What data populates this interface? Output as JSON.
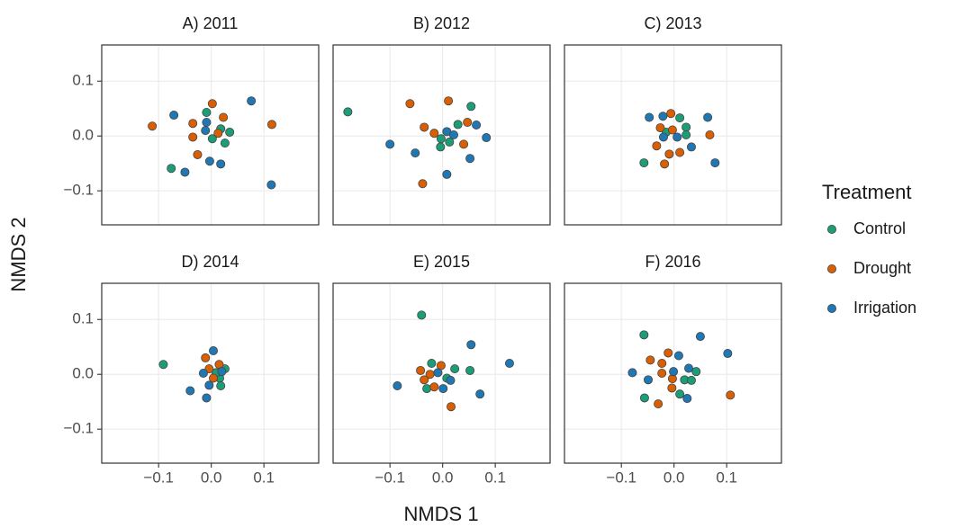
{
  "chart_data": {
    "type": "scatter",
    "x_label": "NMDS 1",
    "y_label": "NMDS 2",
    "xlim": [
      -0.208,
      0.204
    ],
    "ylim": [
      -0.162,
      0.166
    ],
    "xticks": [
      {
        "value": -0.1,
        "label": "−0.1"
      },
      {
        "value": 0,
        "label": "0.0"
      },
      0.1
    ],
    "yticks": [
      {
        "value": -0.1,
        "label": "−0.1"
      },
      {
        "value": 0,
        "label": "0.0"
      },
      0.1
    ],
    "grid": true,
    "legend": {
      "title": "Treatment",
      "position": "right"
    },
    "series": [
      {
        "name": "Control",
        "color": "#1b9e77"
      },
      {
        "name": "Drought",
        "color": "#d95f02"
      },
      {
        "name": "Irrigation",
        "color": "#1f78b4"
      }
    ],
    "panels": [
      {
        "title": "A) 2011",
        "series": [
          {
            "x": [
              -0.009,
              0.002,
              0.018,
              0.026,
              0.035,
              -0.076
            ],
            "y": [
              0.043,
              -0.005,
              0.013,
              -0.013,
              0.007,
              -0.059
            ]
          },
          {
            "x": [
              -0.112,
              -0.035,
              -0.035,
              0.002,
              0.023,
              -0.026,
              0.115,
              0.013
            ],
            "y": [
              0.018,
              0.023,
              -0.002,
              0.059,
              0.034,
              -0.034,
              0.021,
              0.005
            ]
          },
          {
            "x": [
              -0.071,
              -0.009,
              -0.011,
              0.076,
              -0.05,
              -0.003,
              0.018,
              0.114
            ],
            "y": [
              0.038,
              0.025,
              0.01,
              0.064,
              -0.066,
              -0.046,
              -0.051,
              -0.089
            ]
          }
        ]
      },
      {
        "title": "B) 2012",
        "series": [
          {
            "x": [
              -0.18,
              -0.003,
              0.013,
              0.029,
              0.054,
              -0.004
            ],
            "y": [
              0.044,
              -0.005,
              -0.011,
              0.021,
              0.054,
              -0.02
            ]
          },
          {
            "x": [
              -0.062,
              -0.035,
              -0.016,
              0.011,
              0.047,
              0.04,
              -0.038
            ],
            "y": [
              0.059,
              0.016,
              0.005,
              0.064,
              0.025,
              -0.015,
              -0.087
            ]
          },
          {
            "x": [
              -0.1,
              -0.052,
              0.008,
              0.021,
              0.064,
              0.083,
              0.052,
              0.008
            ],
            "y": [
              -0.015,
              -0.031,
              0.008,
              0.002,
              0.02,
              -0.003,
              -0.041,
              -0.07
            ]
          }
        ]
      },
      {
        "title": "C) 2013",
        "series": [
          {
            "x": [
              -0.057,
              -0.015,
              0.011,
              0.023,
              0.023
            ],
            "y": [
              -0.049,
              0.007,
              0.033,
              0.016,
              0.002
            ]
          },
          {
            "x": [
              -0.026,
              -0.006,
              -0.033,
              -0.018,
              -0.009,
              0.011,
              0.068,
              -0.003
            ],
            "y": [
              0.015,
              0.041,
              -0.018,
              -0.051,
              -0.033,
              -0.03,
              0.002,
              0.011
            ]
          },
          {
            "x": [
              -0.047,
              -0.021,
              -0.02,
              0.006,
              0.033,
              0.064,
              0.078
            ],
            "y": [
              0.034,
              0.036,
              -0.002,
              -0.002,
              -0.02,
              0.034,
              -0.049
            ]
          }
        ]
      },
      {
        "title": "D) 2014",
        "series": [
          {
            "x": [
              -0.091,
              0.016,
              0.026,
              0.018,
              0.009
            ],
            "y": [
              0.018,
              -0.007,
              0.01,
              -0.021,
              0.003
            ]
          },
          {
            "x": [
              -0.011,
              -0.004,
              0.015,
              0.004
            ],
            "y": [
              0.03,
              0.01,
              0.018,
              -0.007
            ]
          },
          {
            "x": [
              0.004,
              -0.015,
              -0.004,
              -0.009,
              -0.04,
              0.02
            ],
            "y": [
              0.043,
              0.002,
              -0.02,
              -0.043,
              -0.03,
              0.005
            ]
          }
        ]
      },
      {
        "title": "E) 2015",
        "series": [
          {
            "x": [
              -0.04,
              0.023,
              0.052,
              -0.03,
              -0.021,
              0.008
            ],
            "y": [
              0.108,
              0.01,
              0.007,
              -0.026,
              0.02,
              -0.007
            ]
          },
          {
            "x": [
              -0.042,
              -0.024,
              -0.016,
              -0.003,
              0.016,
              -0.035
            ],
            "y": [
              0.007,
              0.0,
              -0.023,
              0.016,
              -0.059,
              -0.01
            ]
          },
          {
            "x": [
              -0.086,
              -0.009,
              0.015,
              0.054,
              0.071,
              0.127,
              0.001
            ],
            "y": [
              -0.021,
              0.003,
              -0.011,
              0.054,
              -0.036,
              0.02,
              -0.026
            ]
          }
        ]
      },
      {
        "title": "F) 2016",
        "series": [
          {
            "x": [
              -0.057,
              -0.056,
              0.011,
              0.02,
              0.033,
              0.042
            ],
            "y": [
              0.072,
              -0.043,
              -0.036,
              -0.01,
              -0.011,
              0.005
            ]
          },
          {
            "x": [
              -0.045,
              -0.023,
              -0.011,
              -0.023,
              -0.003,
              -0.004,
              -0.03,
              0.107
            ],
            "y": [
              0.026,
              0.02,
              0.039,
              0.002,
              -0.008,
              -0.025,
              -0.054,
              -0.038
            ]
          },
          {
            "x": [
              -0.079,
              -0.049,
              -0.001,
              0.009,
              0.028,
              0.025,
              0.05,
              0.102
            ],
            "y": [
              0.003,
              -0.01,
              0.005,
              0.034,
              0.011,
              -0.044,
              0.069,
              0.038
            ]
          }
        ]
      }
    ]
  }
}
